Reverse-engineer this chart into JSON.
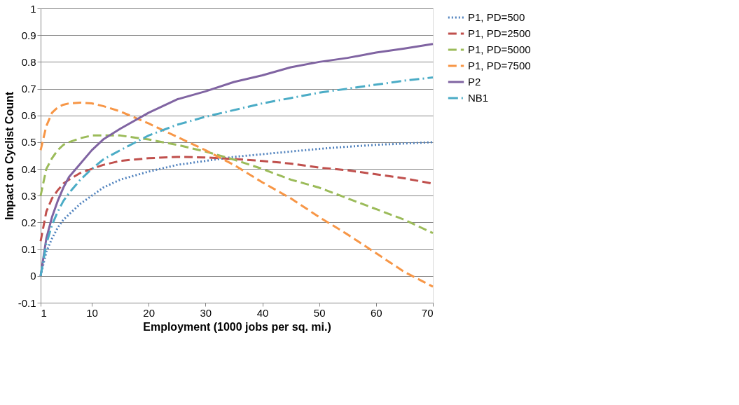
{
  "chart_data": {
    "type": "line",
    "xlabel": "Employment (1000 jobs per sq. mi.)",
    "ylabel": "Impact on Cyclist Count",
    "x": [
      1,
      2,
      3,
      4,
      5,
      6,
      8,
      10,
      12,
      15,
      20,
      25,
      30,
      35,
      40,
      45,
      50,
      55,
      60,
      65,
      70
    ],
    "xlim": [
      1,
      70
    ],
    "xticks": [
      1,
      10,
      20,
      30,
      40,
      50,
      60,
      70
    ],
    "ylim": [
      -0.1,
      1
    ],
    "yticks": [
      -0.1,
      0,
      0.1,
      0.2,
      0.3,
      0.4,
      0.5,
      0.6,
      0.7,
      0.8,
      0.9,
      1
    ],
    "grid": "y",
    "legend": "right",
    "marker": "none",
    "series": [
      {
        "name": "P1, PD=500",
        "color": "#4f81bd",
        "line_style": "dotted",
        "values": [
          0,
          0.09,
          0.14,
          0.18,
          0.21,
          0.23,
          0.27,
          0.3,
          0.33,
          0.36,
          0.39,
          0.415,
          0.43,
          0.445,
          0.455,
          0.465,
          0.475,
          0.483,
          0.49,
          0.495,
          0.5
        ]
      },
      {
        "name": "P1, PD=2500",
        "color": "#c0504d",
        "line_style": "dashed",
        "values": [
          0.13,
          0.24,
          0.29,
          0.32,
          0.345,
          0.36,
          0.385,
          0.4,
          0.415,
          0.43,
          0.44,
          0.445,
          0.443,
          0.437,
          0.43,
          0.42,
          0.405,
          0.395,
          0.38,
          0.365,
          0.345
        ]
      },
      {
        "name": "P1, PD=5000",
        "color": "#9bbb59",
        "line_style": "dashed",
        "values": [
          0.3,
          0.4,
          0.44,
          0.47,
          0.49,
          0.5,
          0.515,
          0.525,
          0.525,
          0.525,
          0.51,
          0.49,
          0.465,
          0.435,
          0.4,
          0.36,
          0.33,
          0.29,
          0.25,
          0.21,
          0.16
        ]
      },
      {
        "name": "P1, PD=7500",
        "color": "#f79646",
        "line_style": "dashed",
        "values": [
          0.47,
          0.56,
          0.61,
          0.63,
          0.64,
          0.645,
          0.648,
          0.645,
          0.635,
          0.615,
          0.57,
          0.52,
          0.47,
          0.415,
          0.35,
          0.29,
          0.22,
          0.155,
          0.085,
          0.015,
          -0.04
        ]
      },
      {
        "name": "P2",
        "color": "#8064a2",
        "line_style": "solid",
        "values": [
          0,
          0.14,
          0.22,
          0.28,
          0.33,
          0.37,
          0.42,
          0.47,
          0.51,
          0.55,
          0.61,
          0.66,
          0.69,
          0.725,
          0.75,
          0.78,
          0.8,
          0.815,
          0.835,
          0.85,
          0.867
        ]
      },
      {
        "name": "NB1",
        "color": "#4bacc6",
        "line_style": "dashdot",
        "values": [
          0,
          0.12,
          0.19,
          0.24,
          0.28,
          0.31,
          0.36,
          0.4,
          0.435,
          0.47,
          0.525,
          0.565,
          0.595,
          0.62,
          0.645,
          0.665,
          0.685,
          0.7,
          0.715,
          0.73,
          0.742
        ]
      }
    ]
  }
}
